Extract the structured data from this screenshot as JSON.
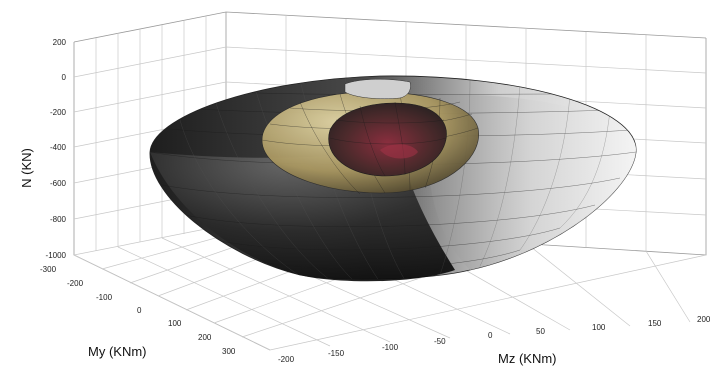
{
  "chart_data": {
    "type": "surface3d",
    "title": "",
    "zlabel": "N (KN)",
    "ylabel": "My (KNm)",
    "xlabel": "Mz (KNm)",
    "z_ticks": [
      "200",
      "0",
      "-200",
      "-400",
      "-600",
      "-800",
      "-1000"
    ],
    "y_ticks": [
      "-300",
      "-200",
      "-100",
      "0",
      "100",
      "200",
      "300"
    ],
    "x_ticks": [
      "-200",
      "-150",
      "-100",
      "-50",
      "0",
      "50",
      "100",
      "150",
      "200"
    ],
    "zlim": [
      -1000,
      200
    ],
    "ylim": [
      -300,
      300
    ],
    "xlim": [
      -200,
      200
    ],
    "grid": true,
    "colors": {
      "outer_surface_dark": "#2b2b2b",
      "outer_surface_light": "#e6e6e6",
      "middle_surface": "#b8a878",
      "inner_surface": "#6b2a34"
    }
  }
}
